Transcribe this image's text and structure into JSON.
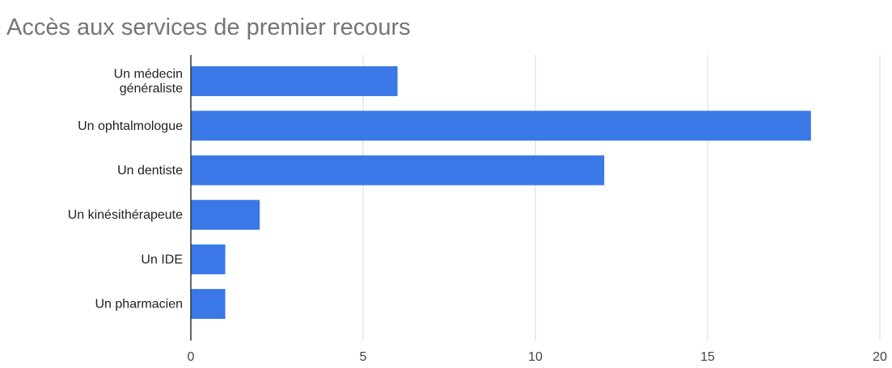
{
  "chart_data": {
    "type": "bar",
    "orientation": "horizontal",
    "title": "Accès aux services de premier recours",
    "xlabel": "",
    "ylabel": "",
    "categories": [
      [
        "Un médecin",
        "généraliste"
      ],
      [
        "Un ophtalmologue"
      ],
      [
        "Un dentiste"
      ],
      [
        "Un kinésithérapeute"
      ],
      [
        "Un IDE"
      ],
      [
        "Un pharmacien"
      ]
    ],
    "values": [
      6,
      18,
      12,
      2,
      1,
      1
    ],
    "xlim": [
      0,
      20
    ],
    "xticks": [
      0,
      5,
      10,
      15,
      20
    ],
    "grid": true,
    "legend": "none",
    "bar_color": "#3b78e7"
  }
}
